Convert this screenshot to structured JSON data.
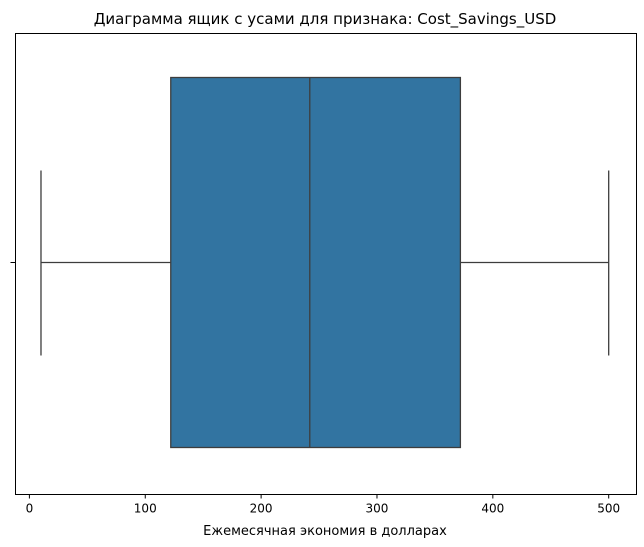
{
  "chart_data": {
    "type": "boxplot",
    "orientation": "horizontal",
    "title": "Диаграмма ящик с усами для признака: Cost_Savings_USD",
    "xlabel": "Ежемесячная экономия в долларах",
    "ylabel": "",
    "xlim": [
      -12,
      524
    ],
    "x_ticks": [
      0,
      100,
      200,
      300,
      400,
      500
    ],
    "x_tick_labels": [
      "0",
      "100",
      "200",
      "300",
      "400",
      "500"
    ],
    "grid": false,
    "series": [
      {
        "whisker_low": 10,
        "q1": 122,
        "median": 242,
        "q3": 372,
        "whisker_high": 500,
        "color": "#3274a1"
      }
    ]
  }
}
